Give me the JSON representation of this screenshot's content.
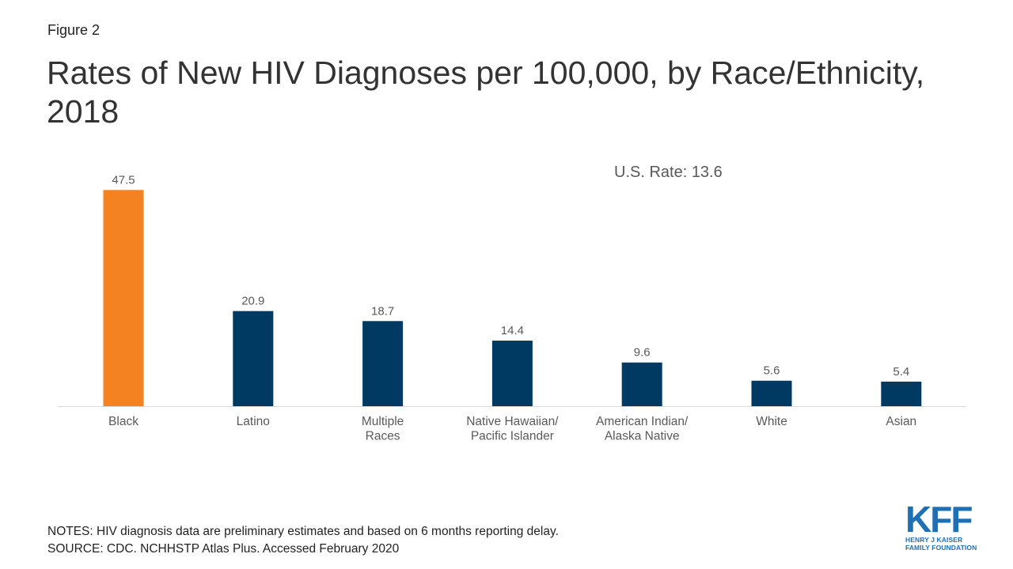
{
  "figure_label": "Figure 2",
  "title": "Rates of New HIV Diagnoses per 100,000, by Race/Ethnicity, 2018",
  "annotation": "U.S. Rate: 13.6",
  "notes": "NOTES: HIV diagnosis data are preliminary estimates and based on 6 months reporting delay.",
  "source": "SOURCE: CDC. NCHHSTP Atlas Plus. Accessed February 2020",
  "logo": {
    "mark": "KFF",
    "line1": "HENRY J KAISER",
    "line2": "FAMILY FOUNDATION"
  },
  "colors": {
    "highlight": "#f58220",
    "bar": "#003a63",
    "axis": "#d9d9d9",
    "label": "#595959",
    "logo": "#1f6fb5"
  },
  "chart_data": {
    "type": "bar",
    "categories": [
      [
        "Black"
      ],
      [
        "Latino"
      ],
      [
        "Multiple",
        "Races"
      ],
      [
        "Native Hawaiian/",
        "Pacific Islander"
      ],
      [
        "American Indian/",
        "Alaska Native"
      ],
      [
        "White"
      ],
      [
        "Asian"
      ]
    ],
    "values": [
      47.5,
      20.9,
      18.7,
      14.4,
      9.6,
      5.6,
      5.4
    ],
    "value_labels": [
      "47.5",
      "20.9",
      "18.7",
      "14.4",
      "9.6",
      "5.6",
      "5.4"
    ],
    "highlight_index": 0,
    "ylim": [
      0,
      50
    ],
    "grid": false,
    "legend": "none"
  }
}
